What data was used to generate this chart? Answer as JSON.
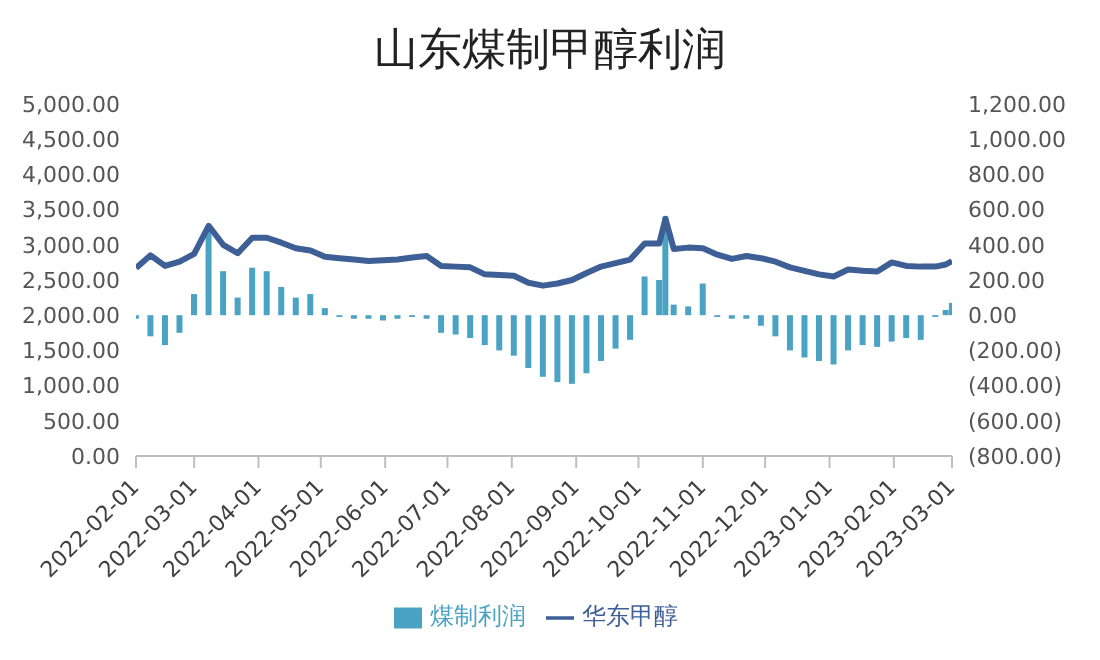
{
  "chart_data": {
    "type": "line",
    "title": "山东煤制甲醇利润",
    "x": [
      "2022-02-01",
      "2022-02-08",
      "2022-02-15",
      "2022-02-22",
      "2022-03-01",
      "2022-03-08",
      "2022-03-15",
      "2022-03-22",
      "2022-03-29",
      "2022-04-05",
      "2022-04-12",
      "2022-04-19",
      "2022-04-26",
      "2022-05-03",
      "2022-05-10",
      "2022-05-17",
      "2022-05-24",
      "2022-05-31",
      "2022-06-07",
      "2022-06-14",
      "2022-06-21",
      "2022-06-28",
      "2022-07-05",
      "2022-07-12",
      "2022-07-19",
      "2022-07-26",
      "2022-08-02",
      "2022-08-09",
      "2022-08-16",
      "2022-08-23",
      "2022-08-30",
      "2022-09-06",
      "2022-09-13",
      "2022-09-20",
      "2022-09-27",
      "2022-10-04",
      "2022-10-11",
      "2022-10-14",
      "2022-10-18",
      "2022-10-25",
      "2022-11-01",
      "2022-11-08",
      "2022-11-15",
      "2022-11-22",
      "2022-11-29",
      "2022-12-06",
      "2022-12-13",
      "2022-12-20",
      "2022-12-27",
      "2023-01-03",
      "2023-01-10",
      "2023-01-17",
      "2023-01-24",
      "2023-01-31",
      "2023-02-07",
      "2023-02-14",
      "2023-02-21",
      "2023-02-26",
      "2023-03-01"
    ],
    "series": [
      {
        "name": "煤制利润",
        "type": "bar",
        "axis": "y2",
        "color": "#4ba3c3",
        "values": [
          -20,
          -120,
          -170,
          -100,
          120,
          480,
          250,
          100,
          270,
          250,
          160,
          100,
          120,
          40,
          -10,
          -20,
          -20,
          -30,
          -20,
          -10,
          -20,
          -100,
          -110,
          -130,
          -170,
          -200,
          -230,
          -300,
          -350,
          -380,
          -390,
          -330,
          -260,
          -190,
          -140,
          220,
          200,
          560,
          60,
          50,
          180,
          -10,
          -20,
          -20,
          -60,
          -120,
          -200,
          -240,
          -260,
          -280,
          -200,
          -170,
          -180,
          -150,
          -130,
          -140,
          -10,
          30,
          70
        ]
      },
      {
        "name": "华东甲醇",
        "color": "#3e5f96",
        "values": [
          2670,
          2850,
          2700,
          2760,
          2870,
          3270,
          3000,
          2880,
          3100,
          3100,
          3030,
          2950,
          2920,
          2830,
          2810,
          2790,
          2770,
          2780,
          2790,
          2820,
          2840,
          2700,
          2690,
          2680,
          2580,
          2570,
          2560,
          2460,
          2420,
          2450,
          2500,
          2600,
          2690,
          2740,
          2790,
          3020,
          3020,
          3370,
          2940,
          2960,
          2950,
          2860,
          2800,
          2840,
          2810,
          2760,
          2680,
          2630,
          2580,
          2550,
          2650,
          2630,
          2620,
          2750,
          2700,
          2690,
          2690,
          2720,
          2770
        ]
      }
    ],
    "xlim": [
      "2022-02-01",
      "2023-03-01"
    ],
    "xticks": [
      "2022-02-01",
      "2022-03-01",
      "2022-04-01",
      "2022-05-01",
      "2022-06-01",
      "2022-07-01",
      "2022-08-01",
      "2022-09-01",
      "2022-10-01",
      "2022-11-01",
      "2022-12-01",
      "2023-01-01",
      "2023-02-01",
      "2023-03-01"
    ],
    "ylim": [
      0,
      5000
    ],
    "yticks": [
      {
        "value": 0,
        "label": "0.00"
      },
      {
        "value": 500,
        "label": "500.00"
      },
      {
        "value": 1000,
        "label": "1,000.00"
      },
      {
        "value": 1500,
        "label": "1,500.00"
      },
      {
        "value": 2000,
        "label": "2,000.00"
      },
      {
        "value": 2500,
        "label": "2,500.00"
      },
      {
        "value": 3000,
        "label": "3,000.00"
      },
      {
        "value": 3500,
        "label": "3,500.00"
      },
      {
        "value": 4000,
        "label": "4,000.00"
      },
      {
        "value": 4500,
        "label": "4,500.00"
      },
      {
        "value": 5000,
        "label": "5,000.00"
      }
    ],
    "y2lim": [
      -800,
      1200
    ],
    "y2ticks": [
      {
        "value": -800,
        "label": "(800.00)"
      },
      {
        "value": -600,
        "label": "(600.00)"
      },
      {
        "value": -400,
        "label": "(400.00)"
      },
      {
        "value": -200,
        "label": "(200.00)"
      },
      {
        "value": 0,
        "label": "0.00"
      },
      {
        "value": 200,
        "label": "200.00"
      },
      {
        "value": 400,
        "label": "400.00"
      },
      {
        "value": 600,
        "label": "600.00"
      },
      {
        "value": 800,
        "label": "800.00"
      },
      {
        "value": 1000,
        "label": "1,000.00"
      },
      {
        "value": 1200,
        "label": "1,200.00"
      }
    ],
    "legend": "bottom",
    "marker": "none",
    "grid": false
  }
}
